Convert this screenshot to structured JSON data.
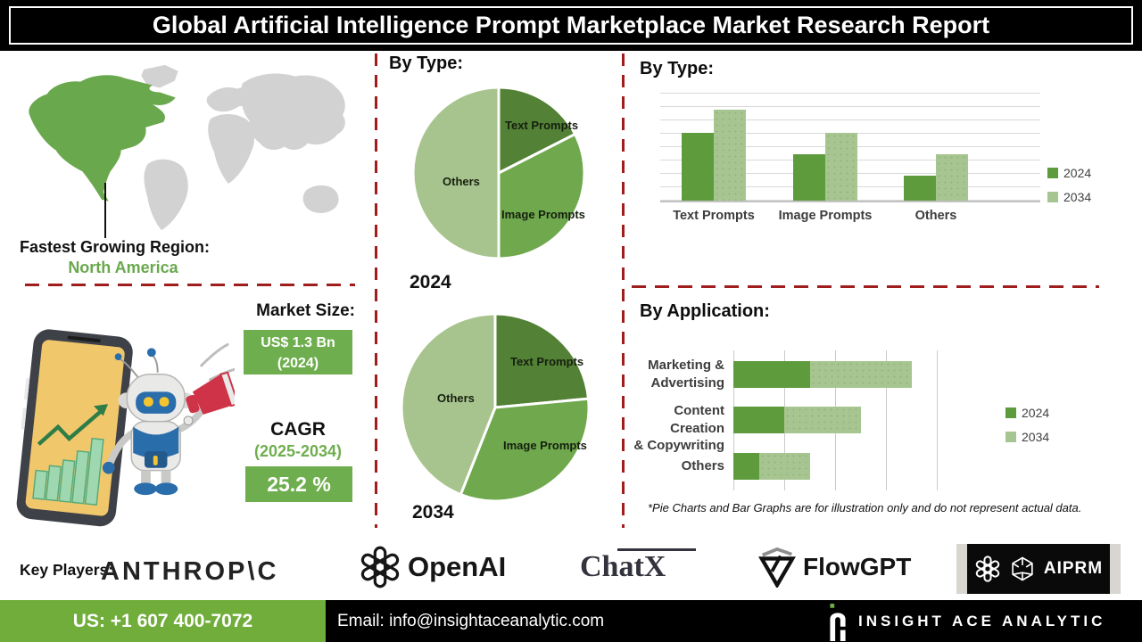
{
  "title": "Global Artificial Intelligence Prompt Marketplace Market Research Report",
  "colors": {
    "dashed_red": "#9f1d1d",
    "pie_slices": [
      "#538135",
      "#6fa84d",
      "#a8c48e"
    ],
    "bar_2024": "#5d9b3d",
    "bar_2034": "#a7c590",
    "box_green": "#6fae4e",
    "footer_green": "#70ad3b",
    "map_gray": "#d2d2d2",
    "map_highlight_green": "#6aa84e"
  },
  "region": {
    "label": "Fastest Growing Region:",
    "value": "North America"
  },
  "market": {
    "size_label": "Market Size:",
    "size_value": "US$ 1.3 Bn",
    "size_year": "(2024)",
    "cagr_label": "CAGR",
    "cagr_period": "(2025-2034)",
    "cagr_value": "25.2 %"
  },
  "chart_data": [
    {
      "type": "pie",
      "title": "By Type:",
      "year": "2024",
      "labels": [
        "Text Prompts",
        "Image Prompts",
        "Others"
      ],
      "values": [
        17.5,
        32.5,
        50
      ],
      "note": "illustrative"
    },
    {
      "type": "pie",
      "title": "By Type:",
      "year": "2034",
      "labels": [
        "Text Prompts",
        "Image Prompts",
        "Others"
      ],
      "values": [
        23.5,
        32.5,
        44
      ],
      "note": "illustrative"
    },
    {
      "type": "bar",
      "title": "By Type:",
      "categories": [
        "Text Prompts",
        "Image Prompts",
        "Others"
      ],
      "series": [
        {
          "name": "2024",
          "values": [
            6.3,
            4.3,
            2.3
          ]
        },
        {
          "name": "2034",
          "values": [
            8.4,
            6.3,
            4.3
          ]
        }
      ],
      "ylim": [
        0,
        10
      ],
      "grid": true,
      "legend_position": "right",
      "note": "illustrative"
    },
    {
      "type": "bar",
      "orientation": "horizontal-stacked",
      "title": "By Application:",
      "categories": [
        "Marketing & Advertising",
        "Content Creation & Copywriting",
        "Others"
      ],
      "label_lines": [
        [
          "Marketing &",
          "Advertising"
        ],
        [
          "Content Creation",
          "& Copywriting"
        ],
        [
          "Others"
        ]
      ],
      "series": [
        {
          "name": "2024",
          "values": [
            1.5,
            1.0,
            0.5
          ]
        },
        {
          "name": "2034",
          "values": [
            2.0,
            1.5,
            1.0
          ]
        }
      ],
      "xlim": [
        0,
        4
      ],
      "grid": true,
      "legend_position": "right",
      "note": "illustrative"
    }
  ],
  "disclaimer": "*Pie Charts and Bar Graphs are for illustration only and do not represent actual data.",
  "key_players": {
    "label": "Key Players:",
    "players": [
      {
        "name": "ANTHROP\\C"
      },
      {
        "name": "OpenAI"
      },
      {
        "name": "ChatX"
      },
      {
        "name": "FlowGPT"
      },
      {
        "name": "AIPRM"
      }
    ]
  },
  "footer": {
    "phone": "US: +1 607 400-7072",
    "email": "Email: info@insightaceanalytic.com",
    "brand": "INSIGHT ACE ANALYTIC"
  }
}
